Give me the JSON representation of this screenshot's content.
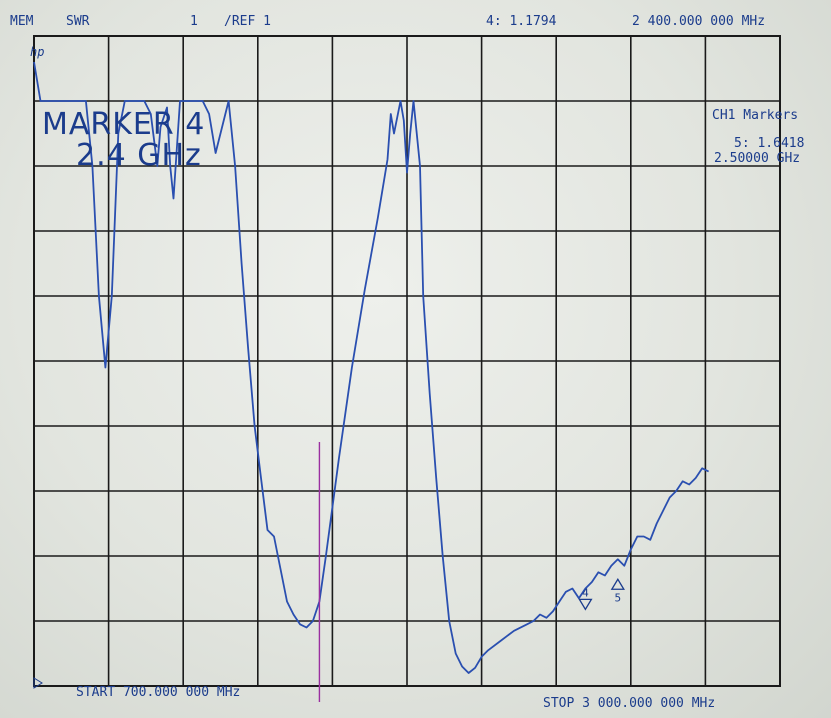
{
  "colors": {
    "trace": "#2a4fb0",
    "grid": "#1a1a1a",
    "text": "#1b3c8c",
    "marker_line": "#9a2fa0"
  },
  "header": {
    "mem": "MEM",
    "format": "SWR",
    "scale": "1",
    "ref": "/REF 1",
    "marker_readout": "4: 1.1794",
    "marker_freq": "2 400.000 000 MHz"
  },
  "hp_logo": "hp",
  "marker_box": {
    "line1": "MARKER 4",
    "line2": "2.4 GHz"
  },
  "ch1_markers": {
    "title": "CH1 Markers",
    "m5_value": "5: 1.6418",
    "m5_freq": "2.50000 GHz"
  },
  "footer": {
    "start": "START 700.000 000 MHz",
    "stop": "STOP 3 000.000 000 MHz"
  },
  "chart_data": {
    "type": "line",
    "x_unit": "MHz",
    "x_start": 700,
    "x_stop": 3000,
    "y_divisions": 10,
    "x_divisions": 10,
    "ref_value": 1,
    "grid": true,
    "series": [
      {
        "points": [
          [
            700,
            9.6
          ],
          [
            720,
            9.0
          ],
          [
            760,
            9.0
          ],
          [
            800,
            9.0
          ],
          [
            860,
            9.0
          ],
          [
            880,
            8.0
          ],
          [
            900,
            6.0
          ],
          [
            920,
            4.9
          ],
          [
            940,
            6.0
          ],
          [
            960,
            8.5
          ],
          [
            980,
            9.0
          ],
          [
            1000,
            9.0
          ],
          [
            1040,
            9.0
          ],
          [
            1060,
            8.8
          ],
          [
            1080,
            8.0
          ],
          [
            1090,
            8.6
          ],
          [
            1110,
            8.9
          ],
          [
            1120,
            8.0
          ],
          [
            1130,
            7.5
          ],
          [
            1150,
            9.0
          ],
          [
            1180,
            9.0
          ],
          [
            1220,
            9.0
          ],
          [
            1240,
            8.8
          ],
          [
            1260,
            8.2
          ],
          [
            1280,
            8.6
          ],
          [
            1300,
            9.0
          ],
          [
            1320,
            8.0
          ],
          [
            1340,
            6.5
          ],
          [
            1360,
            5.2
          ],
          [
            1380,
            4.0
          ],
          [
            1400,
            3.2
          ],
          [
            1420,
            2.4
          ],
          [
            1440,
            2.3
          ],
          [
            1460,
            1.8
          ],
          [
            1480,
            1.3
          ],
          [
            1500,
            1.1
          ],
          [
            1520,
            0.95
          ],
          [
            1540,
            0.9
          ],
          [
            1560,
            1.0
          ],
          [
            1580,
            1.3
          ],
          [
            1600,
            2.0
          ],
          [
            1640,
            3.5
          ],
          [
            1680,
            4.9
          ],
          [
            1720,
            6.1
          ],
          [
            1760,
            7.2
          ],
          [
            1790,
            8.1
          ],
          [
            1800,
            8.8
          ],
          [
            1810,
            8.5
          ],
          [
            1830,
            9.0
          ],
          [
            1840,
            8.7
          ],
          [
            1850,
            7.9
          ],
          [
            1860,
            8.5
          ],
          [
            1870,
            9.0
          ],
          [
            1890,
            8.0
          ],
          [
            1900,
            6.0
          ],
          [
            1920,
            4.5
          ],
          [
            1940,
            3.2
          ],
          [
            1960,
            2.0
          ],
          [
            1980,
            1.0
          ],
          [
            2000,
            0.5
          ],
          [
            2020,
            0.3
          ],
          [
            2040,
            0.2
          ],
          [
            2060,
            0.28
          ],
          [
            2080,
            0.45
          ],
          [
            2100,
            0.55
          ],
          [
            2140,
            0.7
          ],
          [
            2180,
            0.85
          ],
          [
            2220,
            0.95
          ],
          [
            2240,
            1.0
          ],
          [
            2260,
            1.1
          ],
          [
            2280,
            1.05
          ],
          [
            2300,
            1.15
          ],
          [
            2320,
            1.3
          ],
          [
            2340,
            1.45
          ],
          [
            2360,
            1.5
          ],
          [
            2380,
            1.35
          ],
          [
            2400,
            1.5
          ],
          [
            2420,
            1.6
          ],
          [
            2440,
            1.75
          ],
          [
            2460,
            1.7
          ],
          [
            2480,
            1.85
          ],
          [
            2500,
            1.95
          ],
          [
            2520,
            1.85
          ],
          [
            2540,
            2.1
          ],
          [
            2560,
            2.3
          ],
          [
            2580,
            2.3
          ],
          [
            2600,
            2.25
          ],
          [
            2620,
            2.5
          ],
          [
            2640,
            2.7
          ],
          [
            2660,
            2.9
          ],
          [
            2680,
            3.0
          ],
          [
            2700,
            3.15
          ],
          [
            2720,
            3.1
          ],
          [
            2740,
            3.2
          ],
          [
            2760,
            3.35
          ],
          [
            2780,
            3.3
          ]
        ]
      }
    ],
    "markers": [
      {
        "label": "4",
        "x": 2400,
        "y": 1.1794
      },
      {
        "label": "5",
        "x": 2500,
        "y": 1.6418
      }
    ],
    "marker_line_x": 1580
  }
}
